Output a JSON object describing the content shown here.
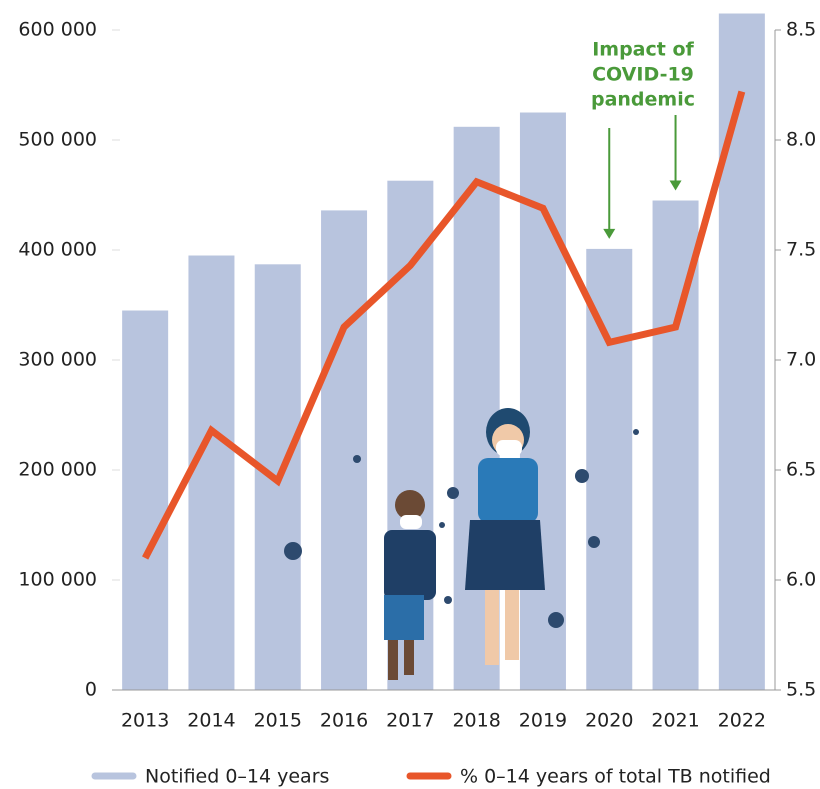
{
  "chart_data": {
    "type": "bar",
    "categories": [
      "2013",
      "2014",
      "2015",
      "2016",
      "2017",
      "2018",
      "2019",
      "2020",
      "2021",
      "2022"
    ],
    "series": [
      {
        "name": "Notified 0–14 years",
        "type": "bar",
        "color": "#b8c4de",
        "values": [
          345000,
          395000,
          387000,
          436000,
          463000,
          512000,
          525000,
          401000,
          445000,
          615000
        ]
      },
      {
        "name": "% 0–14 years of total TB notified",
        "type": "line",
        "axis": "y2",
        "color": "#e8562a",
        "values": [
          6.1,
          6.68,
          6.45,
          7.15,
          7.43,
          7.81,
          7.69,
          7.08,
          7.15,
          8.22
        ]
      }
    ],
    "ylim": [
      0,
      600000
    ],
    "yticks": [
      0,
      {
        "value": 100000,
        "label": "100 000"
      },
      {
        "value": 200000,
        "label": "200 000"
      },
      {
        "value": 300000,
        "label": "300 000"
      },
      {
        "value": 400000,
        "label": "400 000"
      },
      {
        "value": 500000,
        "label": "500 000"
      },
      {
        "value": 600000,
        "label": "600 000"
      }
    ],
    "y2lim": [
      5.5,
      8.5
    ],
    "y2ticks": [
      5.5,
      {
        "value": 6,
        "label": "6.0"
      },
      6.5,
      {
        "value": 7,
        "label": "7.0"
      },
      7.5,
      {
        "value": 8,
        "label": "8.0"
      },
      8.5
    ],
    "annotation": {
      "lines": [
        "Impact of",
        "COVID-19",
        "pandemic"
      ],
      "color": "#4a9a3a",
      "targets": [
        "2020",
        "2021"
      ]
    },
    "legend": "bottom"
  }
}
